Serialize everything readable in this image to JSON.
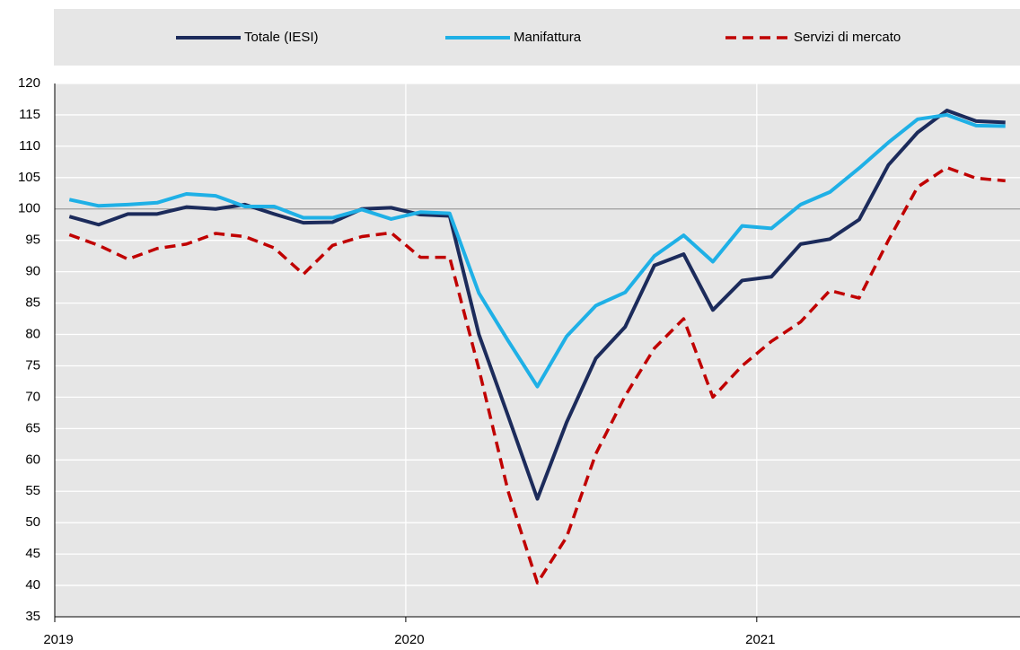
{
  "chart_data": {
    "type": "line",
    "categories": [
      "2019",
      null,
      null,
      null,
      null,
      null,
      null,
      null,
      null,
      null,
      null,
      null,
      "2020",
      null,
      null,
      null,
      null,
      null,
      null,
      null,
      null,
      null,
      null,
      null,
      "2021",
      null,
      null,
      null,
      null,
      null,
      null,
      null,
      null
    ],
    "series": [
      {
        "name": "Totale (IESI)",
        "color": "#1c2b5b",
        "dash": false,
        "values": [
          98.8,
          97.5,
          99.2,
          99.2,
          100.3,
          100.0,
          100.7,
          99.2,
          97.8,
          97.9,
          100.0,
          100.2,
          99.1,
          98.9,
          80.0,
          67.0,
          53.8,
          66.0,
          76.2,
          81.2,
          91.0,
          92.8,
          83.9,
          88.6,
          89.2,
          94.4,
          95.2,
          98.3,
          107.0,
          112.2,
          115.7,
          114.0,
          113.8
        ]
      },
      {
        "name": "Manifattura",
        "color": "#1fb0e6",
        "dash": false,
        "values": [
          101.5,
          100.5,
          100.7,
          101.0,
          102.4,
          102.1,
          100.4,
          100.4,
          98.6,
          98.6,
          99.9,
          98.4,
          99.5,
          99.3,
          86.6,
          79.0,
          71.7,
          79.7,
          84.6,
          86.7,
          92.5,
          95.8,
          91.6,
          97.3,
          96.9,
          100.7,
          102.7,
          106.5,
          110.6,
          114.3,
          115.0,
          113.3,
          113.2
        ]
      },
      {
        "name": "Servizi di mercato",
        "color": "#c00000",
        "dash": true,
        "values": [
          95.9,
          94.2,
          92.0,
          93.7,
          94.4,
          96.1,
          95.6,
          93.8,
          89.6,
          94.2,
          95.6,
          96.2,
          92.3,
          92.3,
          74.5,
          55.0,
          40.4,
          47.7,
          61.0,
          70.2,
          77.8,
          82.5,
          70.0,
          75.0,
          78.9,
          82.0,
          87.0,
          85.8,
          95.0,
          103.5,
          106.6,
          104.9,
          104.5
        ]
      }
    ],
    "ylim": [
      35,
      120
    ],
    "yticks": [
      35,
      40,
      45,
      50,
      55,
      60,
      65,
      70,
      75,
      80,
      85,
      90,
      95,
      100,
      105,
      110,
      115,
      120
    ],
    "baseline": 100,
    "grid": true,
    "legend": "top"
  }
}
